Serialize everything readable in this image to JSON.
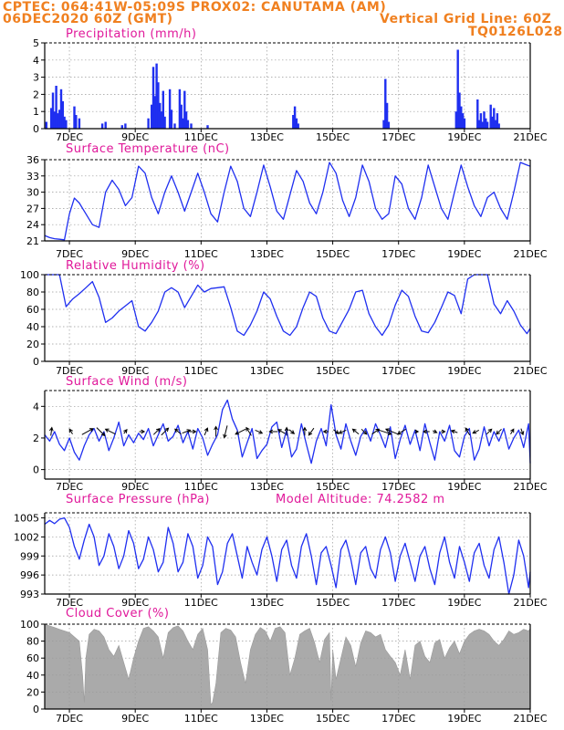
{
  "header": {
    "line1": "CPTEC:   064:41W-05:09S   PROX02: CANUTAMA (AM)",
    "line2_left": "06DEC2020 60Z (GMT)",
    "line2_right": "Vertical Grid Line: 60Z",
    "line3_right": "TQ0126L028"
  },
  "x_axis": {
    "ticks": [
      "7DEC",
      "9DEC",
      "11DEC",
      "13DEC",
      "15DEC",
      "17DEC",
      "19DEC",
      "21DEC"
    ],
    "tick_days": [
      7,
      9,
      11,
      13,
      15,
      17,
      19,
      21
    ],
    "day_range": [
      6.25,
      21.0
    ]
  },
  "colors": {
    "header": "#f08020",
    "title": "#e0189a",
    "series": "#1f2ff0",
    "precip_bar": "#1f2ff0",
    "cloud": "#aaaaaa",
    "wind_arrow": "#000000"
  },
  "chart_data": [
    {
      "id": "precip",
      "type": "bar",
      "title": "Precipitation (mm/h)",
      "ylim": [
        0,
        5
      ],
      "yticks": [
        0,
        1,
        2,
        3,
        4,
        5
      ],
      "x": [
        6.3,
        6.45,
        6.5,
        6.55,
        6.6,
        6.65,
        6.7,
        6.75,
        6.8,
        6.85,
        6.9,
        7.15,
        7.2,
        7.3,
        8.0,
        8.1,
        8.6,
        8.7,
        9.4,
        9.5,
        9.55,
        9.6,
        9.65,
        9.7,
        9.75,
        9.8,
        9.85,
        9.9,
        10.05,
        10.1,
        10.2,
        10.35,
        10.4,
        10.45,
        10.5,
        10.55,
        10.6,
        10.7,
        11.2,
        13.8,
        13.85,
        13.9,
        13.95,
        16.55,
        16.6,
        16.65,
        16.7,
        18.75,
        18.8,
        18.85,
        18.9,
        18.95,
        19.0,
        19.4,
        19.45,
        19.5,
        19.55,
        19.6,
        19.65,
        19.7,
        19.8,
        19.85,
        19.9,
        19.95,
        20.0,
        20.05
      ],
      "values": [
        0.4,
        1.2,
        2.1,
        1.0,
        2.5,
        0.9,
        1.1,
        2.3,
        1.6,
        0.7,
        0.5,
        1.3,
        0.8,
        0.6,
        0.3,
        0.4,
        0.2,
        0.3,
        0.6,
        1.4,
        3.6,
        1.9,
        3.8,
        2.7,
        1.5,
        1.0,
        2.2,
        0.7,
        2.3,
        1.1,
        0.3,
        2.3,
        1.4,
        0.6,
        2.2,
        1.0,
        0.5,
        0.3,
        0.2,
        0.8,
        1.3,
        0.6,
        0.3,
        0.5,
        2.9,
        1.5,
        0.4,
        1.0,
        4.6,
        2.1,
        1.3,
        0.9,
        0.6,
        1.7,
        0.5,
        0.9,
        0.4,
        1.0,
        0.6,
        0.4,
        1.4,
        0.7,
        1.2,
        0.5,
        0.9,
        0.3
      ]
    },
    {
      "id": "temperature",
      "type": "line",
      "title": "Surface Temperature (nC)",
      "ylim": [
        21,
        36
      ],
      "yticks": [
        21,
        24,
        27,
        30,
        33,
        36
      ],
      "x": [
        6.25,
        6.4,
        6.55,
        6.7,
        6.85,
        7.0,
        7.15,
        7.3,
        7.5,
        7.7,
        7.9,
        8.1,
        8.3,
        8.5,
        8.7,
        8.9,
        9.1,
        9.3,
        9.5,
        9.7,
        9.9,
        10.1,
        10.3,
        10.5,
        10.7,
        10.9,
        11.1,
        11.3,
        11.5,
        11.7,
        11.9,
        12.1,
        12.3,
        12.5,
        12.7,
        12.9,
        13.1,
        13.3,
        13.5,
        13.7,
        13.9,
        14.1,
        14.3,
        14.5,
        14.7,
        14.9,
        15.1,
        15.3,
        15.5,
        15.7,
        15.9,
        16.1,
        16.3,
        16.5,
        16.7,
        16.9,
        17.1,
        17.3,
        17.5,
        17.7,
        17.9,
        18.1,
        18.3,
        18.5,
        18.7,
        18.9,
        19.1,
        19.3,
        19.5,
        19.7,
        19.9,
        20.1,
        20.3,
        20.5,
        20.7,
        20.9,
        21.0
      ],
      "values": [
        22.0,
        21.6,
        21.4,
        21.3,
        21.2,
        26.0,
        28.9,
        28.0,
        26.0,
        24.0,
        23.5,
        30.0,
        32.2,
        30.5,
        27.5,
        29.0,
        34.8,
        33.5,
        29.0,
        26.0,
        30.0,
        33.0,
        30.0,
        26.5,
        30.0,
        33.5,
        30.0,
        26.0,
        24.5,
        30.0,
        34.8,
        32.0,
        27.0,
        25.5,
        30.0,
        35.0,
        31.0,
        26.5,
        25.0,
        29.5,
        34.0,
        32.0,
        28.0,
        26.0,
        30.0,
        35.5,
        33.5,
        28.5,
        25.5,
        29.0,
        35.0,
        32.0,
        27.0,
        25.0,
        26.0,
        33.0,
        31.5,
        27.0,
        25.0,
        29.0,
        35.0,
        31.0,
        27.0,
        25.0,
        30.0,
        35.0,
        31.0,
        27.5,
        25.5,
        29.0,
        30.0,
        27.0,
        25.0,
        30.0,
        35.5,
        35.0,
        34.8
      ]
    },
    {
      "id": "humidity",
      "type": "line",
      "title": "Relative Humidity (%)",
      "ylim": [
        0,
        100
      ],
      "yticks": [
        0,
        20,
        40,
        60,
        80,
        100
      ],
      "x": [
        6.25,
        6.5,
        6.7,
        6.9,
        7.1,
        7.3,
        7.5,
        7.7,
        7.9,
        8.1,
        8.3,
        8.5,
        8.7,
        8.9,
        9.1,
        9.3,
        9.5,
        9.7,
        9.9,
        10.1,
        10.3,
        10.5,
        10.7,
        10.9,
        11.1,
        11.3,
        11.5,
        11.7,
        11.9,
        12.1,
        12.3,
        12.5,
        12.7,
        12.9,
        13.1,
        13.3,
        13.5,
        13.7,
        13.9,
        14.1,
        14.3,
        14.5,
        14.7,
        14.9,
        15.1,
        15.3,
        15.5,
        15.7,
        15.9,
        16.1,
        16.3,
        16.5,
        16.7,
        16.9,
        17.1,
        17.3,
        17.5,
        17.7,
        17.9,
        18.1,
        18.3,
        18.5,
        18.7,
        18.9,
        19.1,
        19.3,
        19.5,
        19.7,
        19.9,
        20.1,
        20.3,
        20.5,
        20.7,
        20.9,
        21.0
      ],
      "values": [
        100,
        100,
        100,
        63,
        72,
        78,
        85,
        92,
        74,
        45,
        50,
        58,
        64,
        70,
        40,
        35,
        45,
        58,
        80,
        85,
        80,
        62,
        75,
        88,
        80,
        84,
        85,
        86,
        62,
        35,
        30,
        42,
        58,
        80,
        72,
        52,
        35,
        30,
        40,
        62,
        80,
        75,
        50,
        35,
        32,
        46,
        60,
        80,
        82,
        55,
        40,
        30,
        42,
        65,
        82,
        75,
        52,
        35,
        33,
        45,
        62,
        80,
        76,
        55,
        95,
        100,
        100,
        100,
        66,
        55,
        70,
        58,
        42,
        32,
        38
      ]
    },
    {
      "id": "wind",
      "type": "line",
      "title": "Surface Wind (m/s)",
      "ylim": [
        -0.6,
        5
      ],
      "yticks": [
        0,
        2,
        4
      ],
      "x": [
        6.25,
        6.4,
        6.55,
        6.7,
        6.85,
        7.0,
        7.15,
        7.3,
        7.45,
        7.6,
        7.75,
        7.9,
        8.05,
        8.2,
        8.35,
        8.5,
        8.65,
        8.8,
        8.95,
        9.1,
        9.25,
        9.4,
        9.55,
        9.7,
        9.85,
        10.0,
        10.15,
        10.3,
        10.45,
        10.6,
        10.75,
        10.9,
        11.05,
        11.2,
        11.35,
        11.5,
        11.65,
        11.8,
        11.95,
        12.1,
        12.25,
        12.4,
        12.55,
        12.7,
        12.85,
        13.0,
        13.15,
        13.3,
        13.45,
        13.6,
        13.75,
        13.9,
        14.05,
        14.2,
        14.35,
        14.5,
        14.65,
        14.8,
        14.95,
        15.1,
        15.25,
        15.4,
        15.55,
        15.7,
        15.85,
        16.0,
        16.15,
        16.3,
        16.45,
        16.6,
        16.75,
        16.9,
        17.05,
        17.2,
        17.35,
        17.5,
        17.65,
        17.8,
        17.95,
        18.1,
        18.25,
        18.4,
        18.55,
        18.7,
        18.85,
        19.0,
        19.15,
        19.3,
        19.45,
        19.6,
        19.75,
        19.9,
        20.05,
        20.2,
        20.35,
        20.5,
        20.65,
        20.8,
        20.95,
        21.0
      ],
      "values": [
        2.2,
        1.8,
        2.4,
        1.6,
        1.2,
        2.0,
        1.1,
        0.6,
        1.5,
        2.2,
        2.6,
        1.8,
        2.4,
        1.2,
        2.0,
        3.0,
        1.5,
        2.2,
        1.7,
        2.3,
        1.9,
        2.6,
        1.5,
        2.2,
        2.9,
        1.8,
        2.1,
        2.8,
        1.7,
        2.4,
        1.3,
        2.6,
        2.0,
        0.9,
        1.6,
        2.2,
        3.8,
        4.4,
        3.2,
        2.5,
        0.8,
        1.7,
        2.6,
        0.7,
        1.2,
        1.6,
        2.7,
        3.0,
        1.4,
        2.5,
        0.8,
        1.3,
        2.9,
        1.6,
        0.4,
        1.8,
        2.6,
        1.5,
        4.1,
        2.2,
        1.3,
        2.9,
        1.8,
        0.9,
        2.1,
        2.6,
        1.8,
        2.9,
        2.2,
        1.4,
        2.7,
        0.7,
        1.9,
        2.8,
        1.6,
        2.5,
        1.2,
        2.9,
        1.7,
        0.6,
        2.4,
        1.8,
        2.8,
        1.2,
        0.8,
        2.1,
        2.6,
        0.6,
        1.3,
        2.7,
        1.5,
        2.4,
        1.8,
        2.6,
        1.3,
        2.0,
        2.5,
        1.4,
        2.9,
        0.4
      ]
    },
    {
      "id": "pressure",
      "type": "line",
      "title": "Surface Pressure (hPa)",
      "annotation": "Model Altitude: 74.2582 m",
      "ylim": [
        993,
        1005.8
      ],
      "yticks": [
        993,
        996,
        999,
        1002,
        1005
      ],
      "x": [
        6.25,
        6.4,
        6.55,
        6.7,
        6.85,
        7.0,
        7.15,
        7.3,
        7.45,
        7.6,
        7.75,
        7.9,
        8.05,
        8.2,
        8.35,
        8.5,
        8.65,
        8.8,
        8.95,
        9.1,
        9.25,
        9.4,
        9.55,
        9.7,
        9.85,
        10.0,
        10.15,
        10.3,
        10.45,
        10.6,
        10.75,
        10.9,
        11.05,
        11.2,
        11.35,
        11.5,
        11.65,
        11.8,
        11.95,
        12.1,
        12.25,
        12.4,
        12.55,
        12.7,
        12.85,
        13.0,
        13.15,
        13.3,
        13.45,
        13.6,
        13.75,
        13.9,
        14.05,
        14.2,
        14.35,
        14.5,
        14.65,
        14.8,
        14.95,
        15.1,
        15.25,
        15.4,
        15.55,
        15.7,
        15.85,
        16.0,
        16.15,
        16.3,
        16.45,
        16.6,
        16.75,
        16.9,
        17.05,
        17.2,
        17.35,
        17.5,
        17.65,
        17.8,
        17.95,
        18.1,
        18.25,
        18.4,
        18.55,
        18.7,
        18.85,
        19.0,
        19.15,
        19.3,
        19.45,
        19.6,
        19.75,
        19.9,
        20.05,
        20.2,
        20.35,
        20.5,
        20.65,
        20.8,
        20.95,
        21.0
      ],
      "values": [
        1004.0,
        1004.6,
        1004.1,
        1004.8,
        1005.0,
        1003.5,
        1000.5,
        998.5,
        1001.5,
        1004.0,
        1002.0,
        997.5,
        999.0,
        1002.5,
        1000.5,
        997.0,
        999.0,
        1003.0,
        1001.0,
        997.0,
        998.5,
        1002.0,
        1000.0,
        996.5,
        998.0,
        1003.5,
        1001.0,
        996.5,
        998.0,
        1002.5,
        1000.5,
        995.5,
        997.5,
        1002.0,
        1000.5,
        994.5,
        996.5,
        1001.0,
        1002.5,
        999.0,
        995.5,
        1000.5,
        998.0,
        996.0,
        1000.0,
        1002.0,
        999.0,
        995.0,
        1000.0,
        1001.5,
        997.5,
        995.5,
        1000.5,
        1002.5,
        999.0,
        994.5,
        999.5,
        1000.5,
        997.5,
        994.0,
        1000.0,
        1001.5,
        998.5,
        994.5,
        999.5,
        1000.5,
        997.0,
        995.5,
        1000.0,
        1002.0,
        999.5,
        995.0,
        999.0,
        1001.0,
        998.0,
        995.0,
        999.0,
        1000.5,
        997.0,
        994.5,
        999.5,
        1002.0,
        998.0,
        995.5,
        1000.5,
        998.0,
        995.0,
        999.5,
        1001.0,
        997.5,
        995.5,
        1000.0,
        1002.0,
        998.0,
        993.0,
        996.0,
        1001.5,
        999.0,
        994.0,
        996.5
      ]
    },
    {
      "id": "cloud",
      "type": "area",
      "title": "Cloud Cover (%)",
      "ylim": [
        0,
        100
      ],
      "yticks": [
        0,
        20,
        40,
        60,
        80,
        100
      ],
      "x": [
        6.25,
        6.4,
        6.55,
        6.7,
        6.85,
        7.0,
        7.15,
        7.3,
        7.4,
        7.45,
        7.5,
        7.6,
        7.75,
        7.9,
        8.05,
        8.2,
        8.35,
        8.5,
        8.65,
        8.8,
        8.95,
        9.1,
        9.25,
        9.4,
        9.55,
        9.7,
        9.85,
        10.0,
        10.15,
        10.3,
        10.45,
        10.6,
        10.75,
        10.9,
        11.05,
        11.2,
        11.3,
        11.35,
        11.45,
        11.6,
        11.75,
        11.9,
        12.05,
        12.2,
        12.35,
        12.5,
        12.65,
        12.8,
        12.95,
        13.1,
        13.25,
        13.4,
        13.55,
        13.7,
        13.85,
        14.0,
        14.15,
        14.3,
        14.45,
        14.6,
        14.75,
        14.9,
        14.95,
        15.0,
        15.1,
        15.25,
        15.4,
        15.55,
        15.7,
        15.85,
        16.0,
        16.15,
        16.3,
        16.45,
        16.6,
        16.75,
        16.9,
        17.05,
        17.2,
        17.35,
        17.5,
        17.65,
        17.8,
        17.95,
        18.1,
        18.25,
        18.4,
        18.55,
        18.7,
        18.85,
        19.0,
        19.15,
        19.3,
        19.45,
        19.6,
        19.75,
        19.9,
        20.05,
        20.2,
        20.35,
        20.5,
        20.65,
        20.8,
        20.95,
        21.0
      ],
      "values": [
        100,
        98,
        96,
        94,
        92,
        90,
        85,
        80,
        40,
        8,
        60,
        88,
        94,
        92,
        85,
        70,
        62,
        75,
        55,
        35,
        60,
        80,
        95,
        97,
        92,
        85,
        60,
        90,
        96,
        98,
        92,
        80,
        70,
        88,
        95,
        70,
        5,
        8,
        30,
        90,
        95,
        93,
        85,
        55,
        30,
        70,
        88,
        96,
        92,
        80,
        95,
        97,
        90,
        40,
        60,
        88,
        92,
        95,
        78,
        55,
        82,
        90,
        10,
        70,
        35,
        60,
        85,
        75,
        50,
        78,
        92,
        90,
        85,
        88,
        70,
        62,
        55,
        40,
        70,
        35,
        75,
        80,
        62,
        55,
        78,
        82,
        60,
        72,
        80,
        65,
        80,
        88,
        92,
        94,
        92,
        88,
        80,
        75,
        82,
        92,
        88,
        90,
        94,
        92,
        95
      ]
    }
  ],
  "wind_arrows": {
    "x": [
      6.45,
      7.05,
      7.55,
      7.95,
      8.25,
      8.7,
      9.2,
      9.65,
      9.9,
      10.3,
      10.55,
      10.75,
      11.15,
      11.45,
      11.75,
      12.2,
      12.45,
      12.75,
      13.2,
      13.45,
      13.6,
      13.75,
      14.15,
      14.35,
      14.8,
      15.1,
      15.3,
      15.7,
      15.95,
      16.3,
      16.55,
      16.8,
      17.1,
      17.55,
      17.85,
      18.1,
      18.35,
      18.7,
      19.1,
      19.35,
      19.75,
      20.05,
      20.45,
      20.75
    ],
    "u": [
      0.1,
      -0.3,
      1.1,
      0.8,
      -1.0,
      0.3,
      0.5,
      0.6,
      0.7,
      -0.6,
      0.8,
      0.6,
      0.3,
      0.0,
      -0.3,
      -1.0,
      -0.5,
      0.7,
      -0.8,
      -0.7,
      0.0,
      0.5,
      0.0,
      -0.5,
      -0.5,
      0.5,
      -0.7,
      -0.6,
      0.5,
      0.7,
      1.5,
      -1.2,
      -0.8,
      0.3,
      -0.6,
      0.4,
      0.4,
      -0.6,
      -0.4,
      -0.6,
      0.5,
      -0.5,
      0.3,
      0.2
    ],
    "v": [
      0.8,
      0.5,
      0.6,
      -0.8,
      0.5,
      0.4,
      0.0,
      0.6,
      0.7,
      0.5,
      0.3,
      0.0,
      0.7,
      1.0,
      -1.2,
      -0.5,
      0.8,
      -0.3,
      0.0,
      0.4,
      0.8,
      -0.4,
      0.8,
      -0.7,
      0.0,
      -0.4,
      -0.3,
      0.5,
      -0.5,
      0.5,
      -0.5,
      0.5,
      -0.5,
      0.0,
      0.0,
      -0.2,
      0.0,
      0.2,
      0.7,
      -0.3,
      0.5,
      -0.5,
      0.5,
      -0.6
    ]
  }
}
